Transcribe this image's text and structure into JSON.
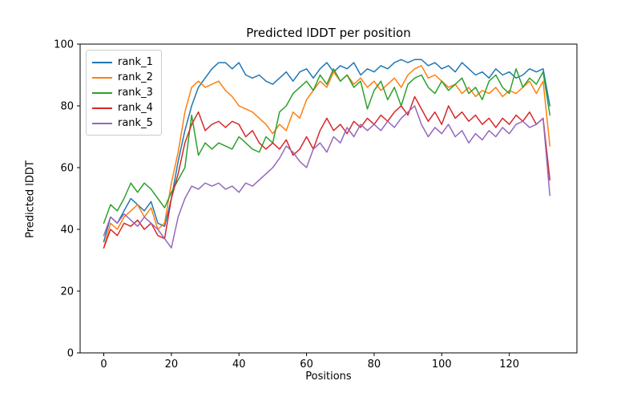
{
  "chart_data": {
    "type": "line",
    "title": "Predicted lDDT per position",
    "xlabel": "Positions",
    "ylabel": "Predicted lDDT",
    "xlim": [
      -7,
      140
    ],
    "ylim": [
      0,
      100
    ],
    "xticks": [
      0,
      20,
      40,
      60,
      80,
      100,
      120
    ],
    "yticks": [
      0,
      20,
      40,
      60,
      80,
      100
    ],
    "grid": false,
    "legend_position": "upper left",
    "x": [
      0,
      2,
      4,
      6,
      8,
      10,
      12,
      14,
      16,
      18,
      20,
      22,
      24,
      26,
      28,
      30,
      32,
      34,
      36,
      38,
      40,
      42,
      44,
      46,
      48,
      50,
      52,
      54,
      56,
      58,
      60,
      62,
      64,
      66,
      68,
      70,
      72,
      74,
      76,
      78,
      80,
      82,
      84,
      86,
      88,
      90,
      92,
      94,
      96,
      98,
      100,
      102,
      104,
      106,
      108,
      110,
      112,
      114,
      116,
      118,
      120,
      122,
      124,
      126,
      128,
      130,
      132
    ],
    "series": [
      {
        "name": "rank_1",
        "color": "#1f77b4",
        "values": [
          36,
          44,
          42,
          46,
          50,
          48,
          46,
          49,
          42,
          41,
          50,
          62,
          72,
          80,
          86,
          89,
          92,
          94,
          94,
          92,
          94,
          90,
          89,
          90,
          88,
          87,
          89,
          91,
          88,
          91,
          92,
          89,
          92,
          94,
          91,
          93,
          92,
          94,
          90,
          92,
          91,
          93,
          92,
          94,
          95,
          94,
          95,
          95,
          93,
          94,
          92,
          93,
          91,
          94,
          92,
          90,
          91,
          89,
          92,
          90,
          91,
          89,
          90,
          92,
          91,
          92,
          80
        ]
      },
      {
        "name": "rank_2",
        "color": "#ff7f0e",
        "values": [
          34,
          42,
          40,
          44,
          46,
          48,
          44,
          47,
          40,
          42,
          55,
          65,
          78,
          86,
          88,
          86,
          87,
          88,
          85,
          83,
          80,
          79,
          78,
          76,
          74,
          71,
          74,
          72,
          78,
          76,
          82,
          85,
          88,
          86,
          91,
          88,
          90,
          87,
          89,
          86,
          88,
          85,
          87,
          89,
          86,
          90,
          92,
          93,
          89,
          90,
          88,
          86,
          87,
          84,
          86,
          83,
          85,
          84,
          86,
          83,
          85,
          84,
          86,
          88,
          84,
          88,
          67
        ]
      },
      {
        "name": "rank_3",
        "color": "#2ca02c",
        "values": [
          42,
          48,
          46,
          50,
          55,
          52,
          55,
          53,
          50,
          47,
          52,
          56,
          60,
          77,
          64,
          68,
          66,
          68,
          67,
          66,
          70,
          68,
          66,
          65,
          70,
          68,
          78,
          80,
          84,
          86,
          88,
          85,
          90,
          87,
          92,
          88,
          90,
          86,
          88,
          79,
          85,
          88,
          82,
          86,
          80,
          87,
          89,
          90,
          86,
          84,
          88,
          85,
          87,
          89,
          84,
          86,
          82,
          88,
          90,
          86,
          84,
          92,
          86,
          89,
          87,
          91,
          77
        ]
      },
      {
        "name": "rank_4",
        "color": "#d62728",
        "values": [
          34,
          40,
          38,
          42,
          41,
          43,
          40,
          42,
          38,
          37,
          50,
          58,
          68,
          74,
          78,
          72,
          74,
          75,
          73,
          75,
          74,
          70,
          72,
          68,
          66,
          68,
          66,
          69,
          64,
          66,
          70,
          66,
          72,
          76,
          72,
          74,
          71,
          75,
          73,
          76,
          74,
          77,
          75,
          78,
          80,
          77,
          83,
          79,
          75,
          78,
          74,
          80,
          76,
          78,
          75,
          77,
          74,
          76,
          73,
          76,
          74,
          77,
          75,
          78,
          74,
          76,
          56
        ]
      },
      {
        "name": "rank_5",
        "color": "#9467bd",
        "values": [
          38,
          44,
          42,
          45,
          43,
          41,
          44,
          42,
          40,
          37,
          34,
          44,
          50,
          54,
          53,
          55,
          54,
          55,
          53,
          54,
          52,
          55,
          54,
          56,
          58,
          60,
          63,
          67,
          65,
          62,
          60,
          66,
          68,
          65,
          70,
          68,
          73,
          70,
          74,
          72,
          74,
          72,
          75,
          73,
          76,
          78,
          80,
          74,
          70,
          73,
          71,
          74,
          70,
          72,
          68,
          71,
          69,
          72,
          70,
          73,
          71,
          74,
          75,
          73,
          74,
          76,
          51
        ]
      }
    ]
  }
}
